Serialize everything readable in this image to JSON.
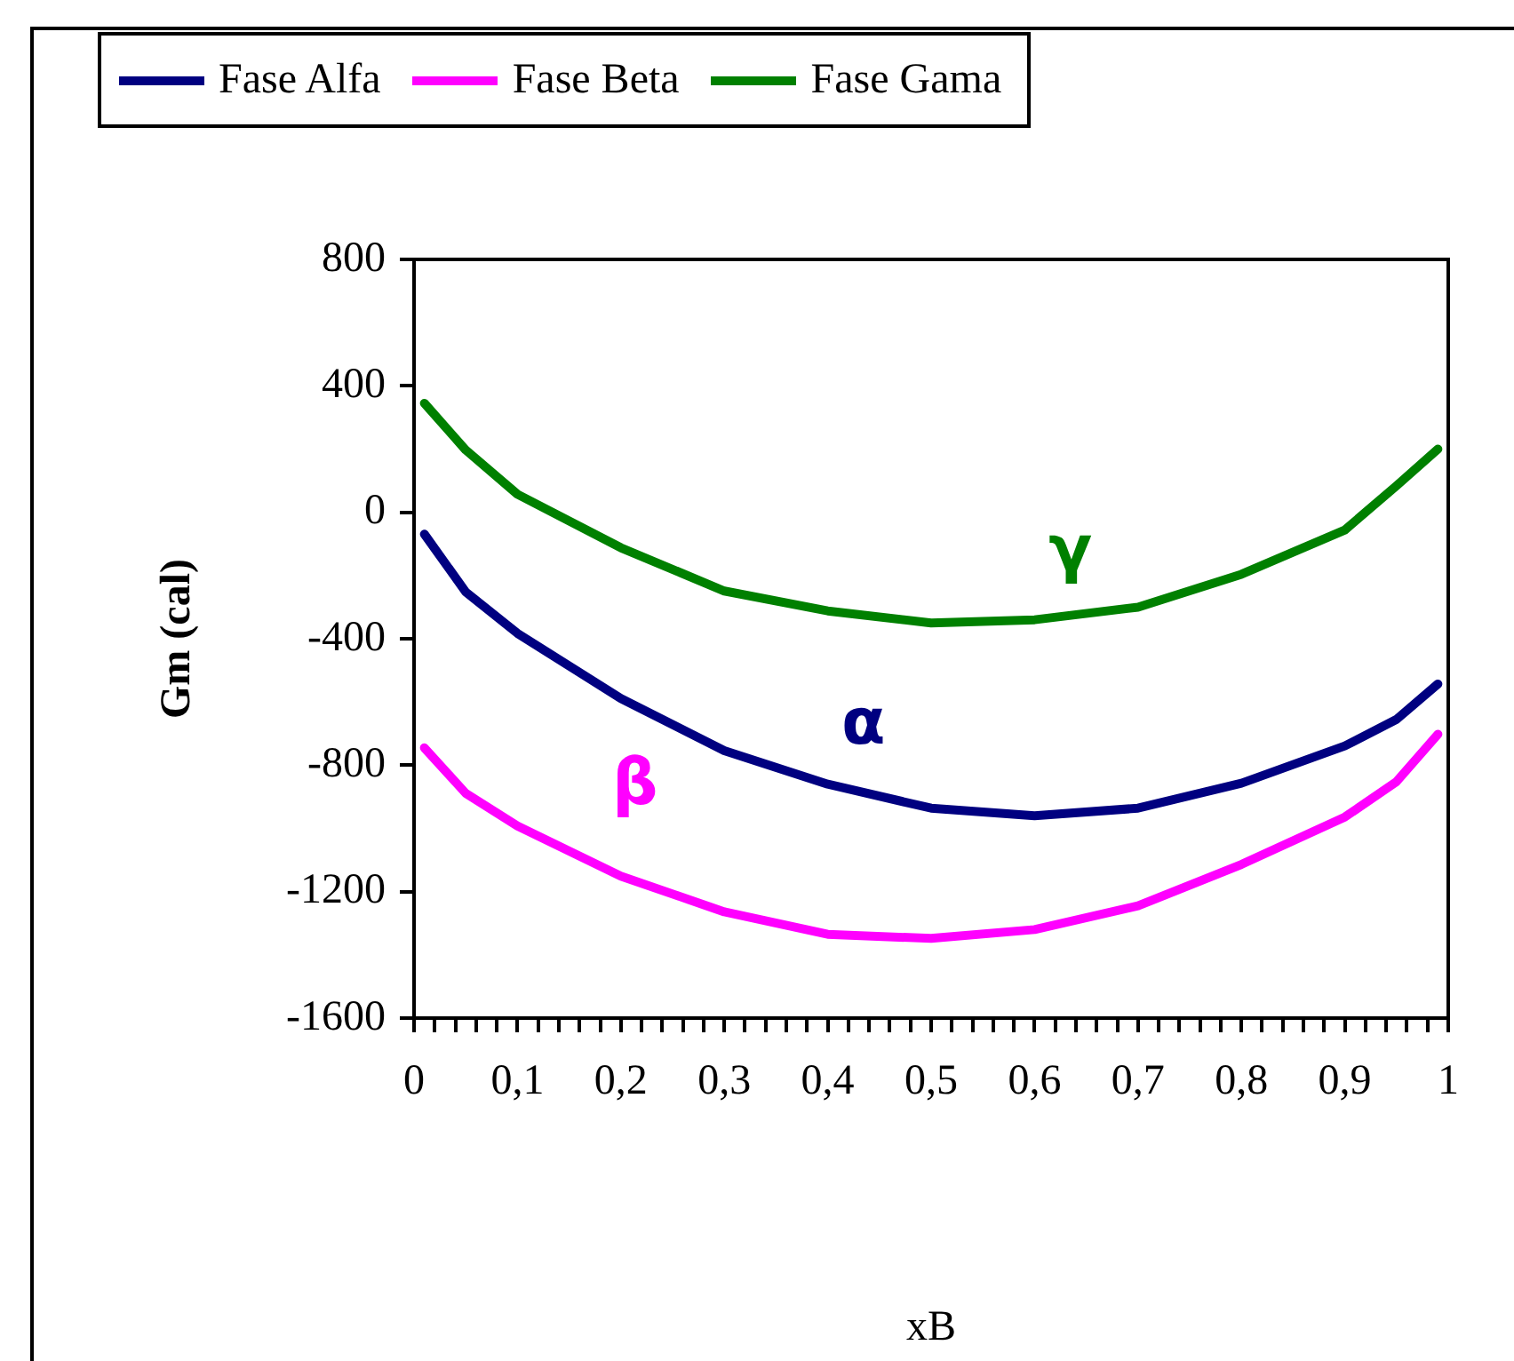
{
  "chart_data": {
    "type": "line",
    "xlabel": "xB",
    "ylabel": "Gm (cal)",
    "xlim": [
      0,
      1
    ],
    "xticks": [
      {
        "value": 0,
        "label": "0"
      },
      {
        "value": 0.02,
        "label": null
      },
      {
        "value": 0.04,
        "label": null
      },
      {
        "value": 0.06,
        "label": null
      },
      {
        "value": 0.08,
        "label": null
      },
      {
        "value": 0.1,
        "label": "0,1"
      },
      {
        "value": 0.12,
        "label": null
      },
      {
        "value": 0.14,
        "label": null
      },
      {
        "value": 0.16,
        "label": null
      },
      {
        "value": 0.18,
        "label": null
      },
      {
        "value": 0.2,
        "label": "0,2"
      },
      {
        "value": 0.22,
        "label": null
      },
      {
        "value": 0.24,
        "label": null
      },
      {
        "value": 0.26,
        "label": null
      },
      {
        "value": 0.28,
        "label": null
      },
      {
        "value": 0.3,
        "label": "0,3"
      },
      {
        "value": 0.32,
        "label": null
      },
      {
        "value": 0.34,
        "label": null
      },
      {
        "value": 0.36,
        "label": null
      },
      {
        "value": 0.38,
        "label": null
      },
      {
        "value": 0.4,
        "label": "0,4"
      },
      {
        "value": 0.42,
        "label": null
      },
      {
        "value": 0.44,
        "label": null
      },
      {
        "value": 0.46,
        "label": null
      },
      {
        "value": 0.48,
        "label": null
      },
      {
        "value": 0.5,
        "label": "0,5"
      },
      {
        "value": 0.52,
        "label": null
      },
      {
        "value": 0.54,
        "label": null
      },
      {
        "value": 0.56,
        "label": null
      },
      {
        "value": 0.58,
        "label": null
      },
      {
        "value": 0.6,
        "label": "0,6"
      },
      {
        "value": 0.62,
        "label": null
      },
      {
        "value": 0.64,
        "label": null
      },
      {
        "value": 0.66,
        "label": null
      },
      {
        "value": 0.68,
        "label": null
      },
      {
        "value": 0.7,
        "label": "0,7"
      },
      {
        "value": 0.72,
        "label": null
      },
      {
        "value": 0.74,
        "label": null
      },
      {
        "value": 0.76,
        "label": null
      },
      {
        "value": 0.78,
        "label": null
      },
      {
        "value": 0.8,
        "label": "0,8"
      },
      {
        "value": 0.82,
        "label": null
      },
      {
        "value": 0.84,
        "label": null
      },
      {
        "value": 0.86,
        "label": null
      },
      {
        "value": 0.88,
        "label": null
      },
      {
        "value": 0.9,
        "label": "0,9"
      },
      {
        "value": 0.92,
        "label": null
      },
      {
        "value": 0.94,
        "label": null
      },
      {
        "value": 0.96,
        "label": null
      },
      {
        "value": 0.98,
        "label": null
      },
      {
        "value": 1,
        "label": "1"
      }
    ],
    "ylim": [
      -1600,
      800
    ],
    "yticks": [
      -1600,
      -1200,
      -800,
      -400,
      0,
      400,
      800
    ],
    "x": [
      0.01,
      0.05,
      0.1,
      0.2,
      0.3,
      0.4,
      0.5,
      0.6,
      0.7,
      0.8,
      0.9,
      0.95,
      0.99
    ],
    "series": [
      {
        "name": "Fase Alfa",
        "color": "#000080",
        "values": [
          -69,
          -252,
          -383,
          -589,
          -754,
          -860,
          -936,
          -960,
          -936,
          -857,
          -739,
          -655,
          -543
        ]
      },
      {
        "name": "Fase Beta",
        "color": "#ff00ff",
        "values": [
          -745,
          -889,
          -992,
          -1151,
          -1264,
          -1335,
          -1348,
          -1320,
          -1245,
          -1114,
          -964,
          -852,
          -702
        ]
      },
      {
        "name": "Fase Gama",
        "color": "#008000",
        "values": [
          345,
          197,
          57,
          -112,
          -249,
          -312,
          -350,
          -340,
          -300,
          -196,
          -56,
          84,
          200
        ]
      }
    ],
    "annotations": [
      "α",
      "β",
      "γ"
    ],
    "legend": "top",
    "grid": false,
    "marker": "none",
    "line_style": "solid"
  }
}
